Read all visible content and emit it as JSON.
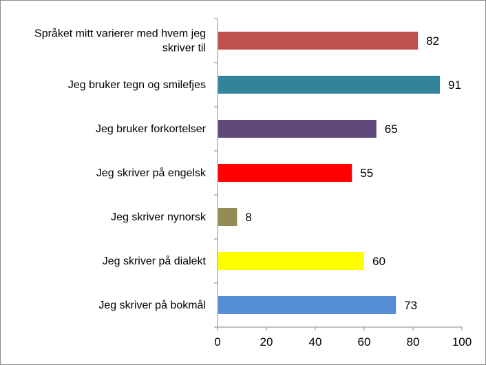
{
  "chart_data": {
    "type": "bar",
    "orientation": "horizontal",
    "title": "",
    "xlabel": "",
    "ylabel": "",
    "xlim": [
      0,
      100
    ],
    "x_ticks": [
      0,
      20,
      40,
      60,
      80,
      100
    ],
    "grid": false,
    "legend": "none",
    "bars": [
      {
        "label_lines": [
          "Språket mitt varierer med hvem jeg",
          "skriver til"
        ],
        "value": 82,
        "color": "#C0504D"
      },
      {
        "label_lines": [
          "Jeg bruker tegn og smilefjes"
        ],
        "value": 91,
        "color": "#31849B"
      },
      {
        "label_lines": [
          "Jeg bruker forkortelser"
        ],
        "value": 65,
        "color": "#604A7B"
      },
      {
        "label_lines": [
          "Jeg skriver på engelsk"
        ],
        "value": 55,
        "color": "#FF0000"
      },
      {
        "label_lines": [
          "Jeg skriver nynorsk"
        ],
        "value": 8,
        "color": "#948A54"
      },
      {
        "label_lines": [
          "Jeg skriver på dialekt"
        ],
        "value": 60,
        "color": "#FFFF00"
      },
      {
        "label_lines": [
          "Jeg skriver på bokmål"
        ],
        "value": 73,
        "color": "#558ED5"
      }
    ]
  }
}
